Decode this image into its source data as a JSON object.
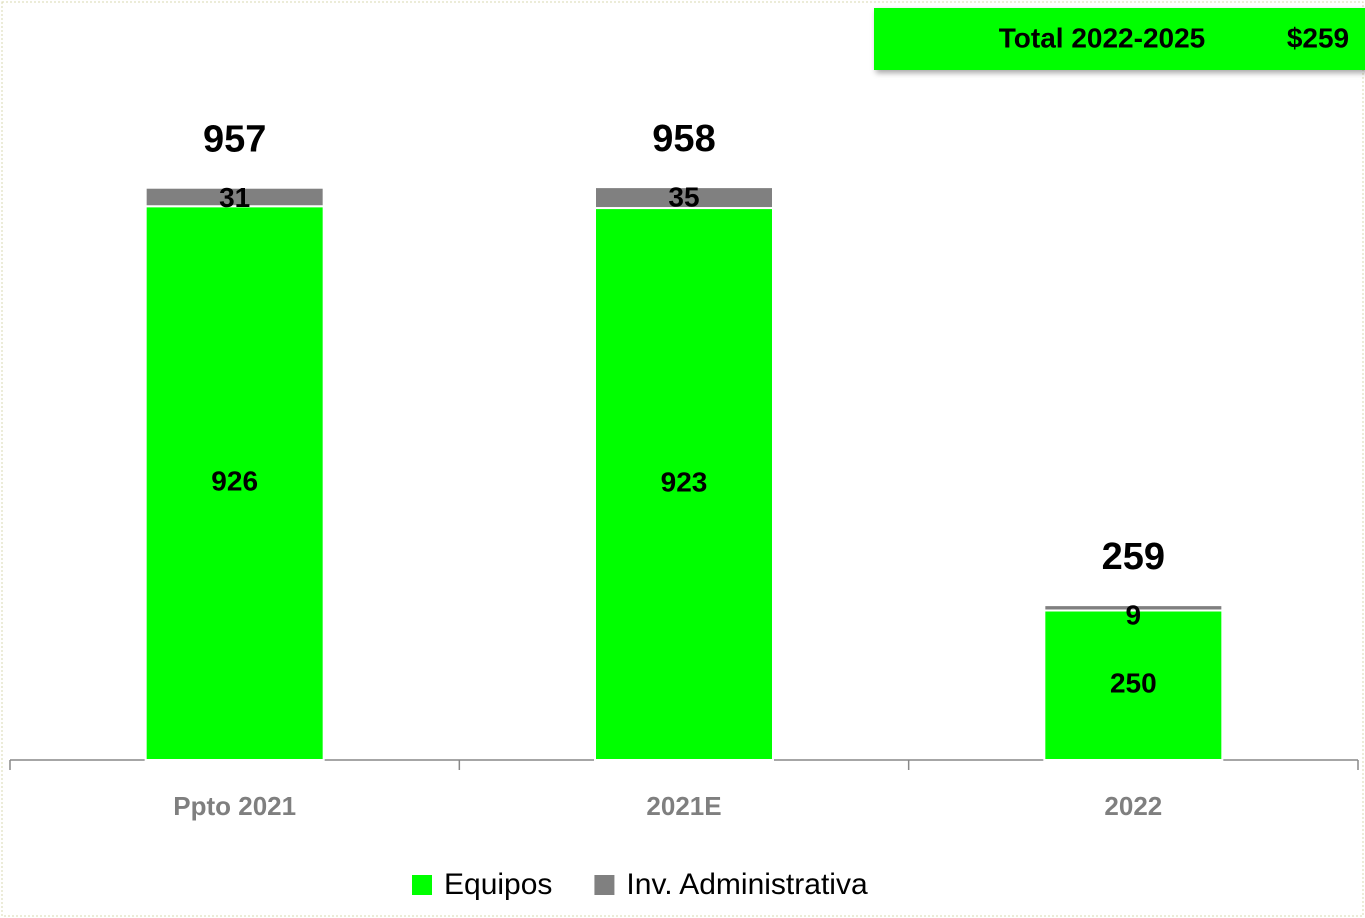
{
  "chart_data": {
    "type": "stacked_bar",
    "categories": [
      "Ppto 2021",
      "2021E",
      "2022"
    ],
    "series": [
      {
        "name": "Equipos",
        "color": "#00ff00",
        "values": [
          926,
          923,
          250
        ]
      },
      {
        "name": "Inv. Administrativa",
        "color": "#808080",
        "values": [
          31,
          35,
          9
        ]
      }
    ],
    "totals": [
      957,
      958,
      259
    ],
    "ylim": [
      0,
      1000
    ],
    "annotation": {
      "label": "Total 2022-2025",
      "value": "$259"
    }
  }
}
